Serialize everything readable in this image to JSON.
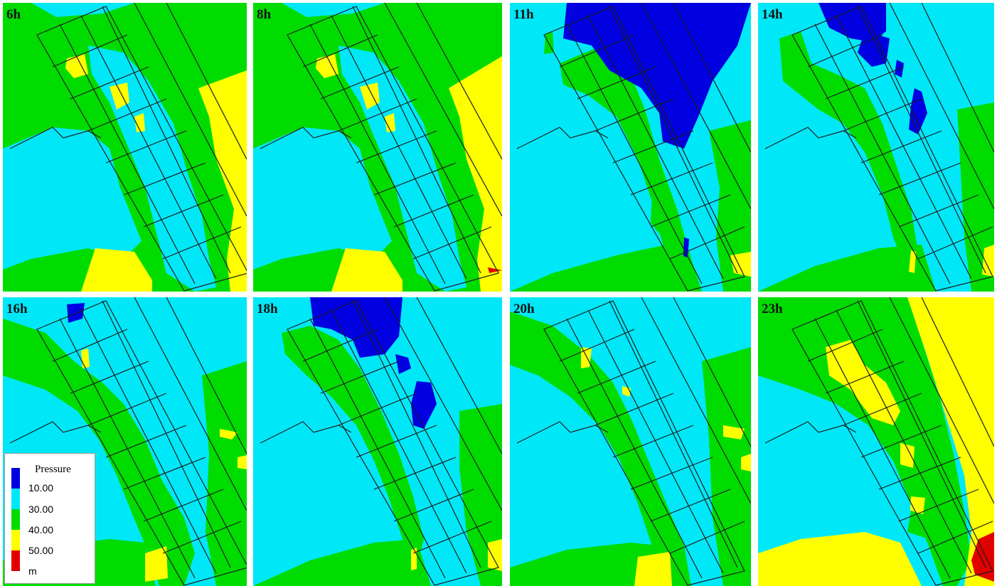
{
  "colors": {
    "below_10": "#0000e0",
    "10_30": "#00e8f8",
    "30_40": "#00dc00",
    "40_50": "#ffff00",
    "above_50": "#e00000",
    "grid_line": "#1e1e1e"
  },
  "panels": [
    {
      "label": "6h",
      "max_class": "40-50"
    },
    {
      "label": "8h",
      "max_class": "above-50"
    },
    {
      "label": "11h",
      "max_class": "40-50"
    },
    {
      "label": "14h",
      "max_class": "40-50"
    },
    {
      "label": "16h",
      "max_class": "40-50"
    },
    {
      "label": "18h",
      "max_class": "40-50"
    },
    {
      "label": "20h",
      "max_class": "40-50"
    },
    {
      "label": "23h",
      "max_class": "above-50"
    }
  ],
  "legend": {
    "title": "Pressure",
    "thresholds": [
      "10.00",
      "30.00",
      "40.00",
      "50.00"
    ],
    "unit": "m",
    "colors": [
      "#0000e0",
      "#00e8f8",
      "#00dc00",
      "#ffff00",
      "#e00000"
    ]
  }
}
